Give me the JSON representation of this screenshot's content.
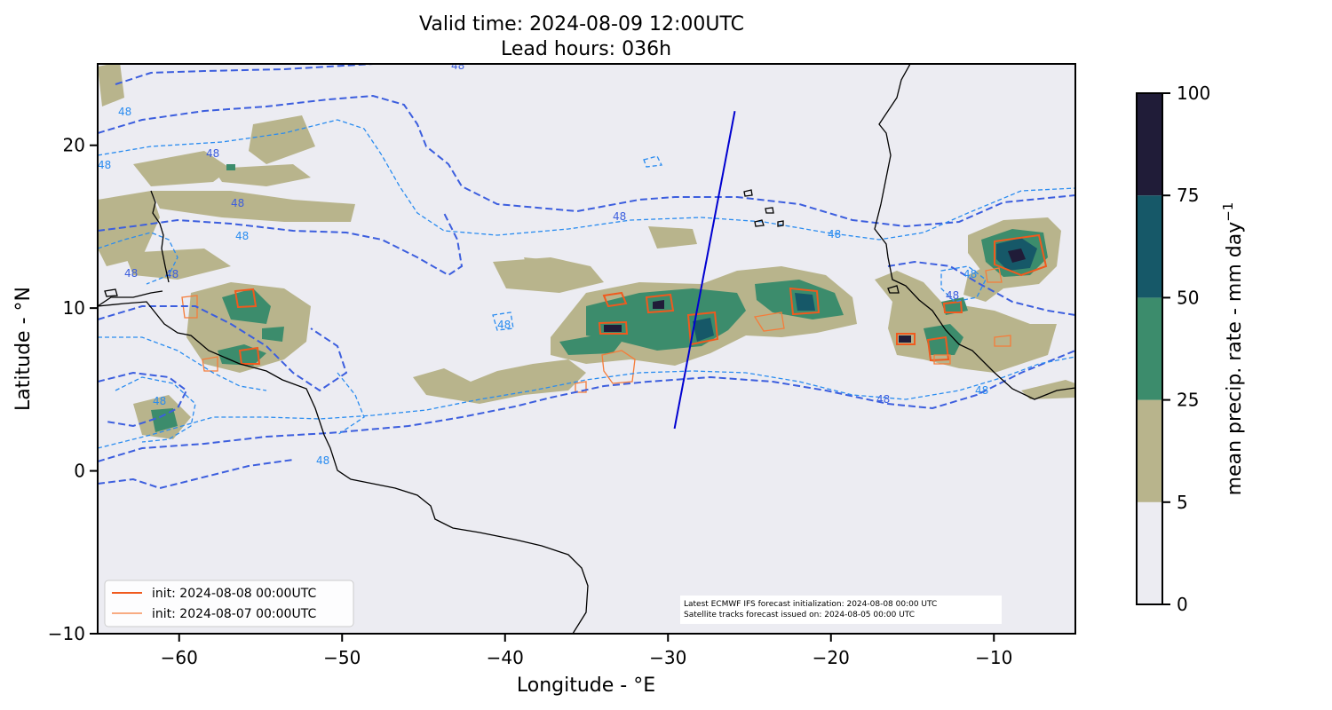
{
  "title": {
    "line1": "Valid time: 2024-08-09 12:00UTC",
    "line2": "Lead hours: 036h"
  },
  "axes": {
    "xlabel": "Longitude - °E",
    "ylabel": "Latitude - °N",
    "xlim": [
      -65,
      -5
    ],
    "ylim": [
      -10,
      25
    ],
    "xticks": [
      -60,
      -50,
      -40,
      -30,
      -20,
      -10
    ],
    "yticks": [
      -10,
      0,
      10,
      20
    ],
    "xtick_labels": [
      "−60",
      "−50",
      "−40",
      "−30",
      "−20",
      "−10"
    ],
    "ytick_labels": [
      "−10",
      "0",
      "10",
      "20"
    ]
  },
  "colorbar": {
    "label": "mean precip. rate - mm day",
    "label_sup": "−1",
    "levels": [
      0,
      5,
      25,
      50,
      75,
      100
    ],
    "level_labels": [
      "0",
      "5",
      "25",
      "50",
      "75",
      "100"
    ],
    "colors": [
      "#ececf2",
      "#b8b48c",
      "#3c8c6c",
      "#165868",
      "#201c38"
    ]
  },
  "legend": {
    "items": [
      {
        "label": "init: 2024-08-08 00:00UTC",
        "color": "#f05a1e"
      },
      {
        "label": "init: 2024-08-07 00:00UTC",
        "color": "#f57c3a"
      }
    ]
  },
  "info": {
    "line1": "Latest ECMWF IFS forecast initialization: 2024-08-08 00:00 UTC",
    "line2": "Satellite tracks forecast issued on: 2024-08-05 00:00 UTC"
  },
  "contour_label": "48",
  "satellite_track": {
    "start": [
      -29.6,
      2.6
    ],
    "end": [
      -25.9,
      22.1
    ],
    "color": "#0000d0"
  },
  "chart_data": {
    "type": "heatmap",
    "title": "Valid time: 2024-08-09 12:00UTC / Lead hours: 036h",
    "xlabel": "Longitude - °E",
    "ylabel": "Latitude - °N",
    "xlim": [
      -65,
      -5
    ],
    "ylim": [
      -10,
      25
    ],
    "colorbar_levels": [
      0,
      5,
      25,
      50,
      75,
      100
    ],
    "legend_placement": "lower-left",
    "grid": false
  }
}
